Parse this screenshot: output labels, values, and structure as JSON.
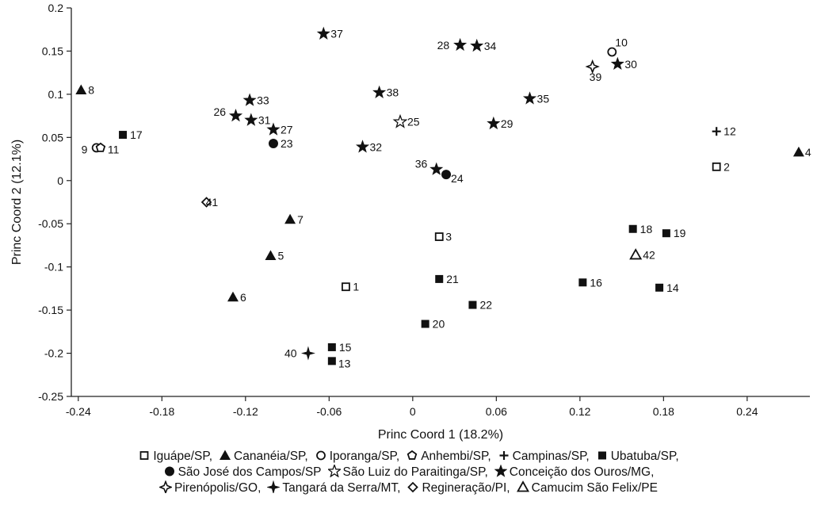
{
  "chart_data": {
    "type": "scatter",
    "xlabel": "Princ Coord 1 (18.2%)",
    "ylabel": "Princ Coord 2 (12.1%)",
    "xlim": [
      -0.245,
      0.285
    ],
    "ylim": [
      -0.25,
      0.2
    ],
    "x_ticks": [
      -0.24,
      -0.18,
      -0.12,
      -0.06,
      0,
      0.06,
      0.12,
      0.18,
      0.24
    ],
    "x_tick_labels": [
      "-0.24",
      "-0.18",
      "-0.12",
      "-0.06",
      "0",
      "0.06",
      "0.12",
      "0.18",
      "0.24"
    ],
    "y_ticks": [
      -0.25,
      -0.2,
      -0.15,
      -0.1,
      -0.05,
      0,
      0.05,
      0.1,
      0.15,
      0.2
    ],
    "y_tick_labels": [
      "-0.25",
      "-0.2",
      "-0.15",
      "-0.1",
      "-0.05",
      "0",
      "0.05",
      "0.1",
      "0.15",
      "0.2"
    ],
    "grid": false,
    "legend_position": "bottom",
    "series": [
      {
        "name": "Iguápe/SP,",
        "marker": "open-square",
        "points": [
          {
            "label": "1",
            "x": -0.048,
            "y": -0.123
          },
          {
            "label": "2",
            "x": 0.218,
            "y": 0.016
          },
          {
            "label": "3",
            "x": 0.019,
            "y": -0.065
          }
        ]
      },
      {
        "name": "Cananéia/SP,",
        "marker": "filled-triangle",
        "points": [
          {
            "label": "4",
            "x": 0.277,
            "y": 0.033
          },
          {
            "label": "5",
            "x": -0.102,
            "y": -0.087
          },
          {
            "label": "6",
            "x": -0.129,
            "y": -0.135
          },
          {
            "label": "7",
            "x": -0.088,
            "y": -0.045
          },
          {
            "label": "8",
            "x": -0.238,
            "y": 0.105
          }
        ]
      },
      {
        "name": "Iporanga/SP,",
        "marker": "open-circle",
        "points": [
          {
            "label": "9",
            "x": -0.227,
            "y": 0.038
          },
          {
            "label": "10",
            "x": 0.143,
            "y": 0.149
          }
        ]
      },
      {
        "name": "Anhembi/SP,",
        "marker": "open-pentagon",
        "points": [
          {
            "label": "11",
            "x": -0.224,
            "y": 0.038
          }
        ]
      },
      {
        "name": "Campinas/SP,",
        "marker": "plus",
        "points": [
          {
            "label": "12",
            "x": 0.218,
            "y": 0.057
          }
        ]
      },
      {
        "name": "Ubatuba/SP,",
        "marker": "filled-square",
        "points": [
          {
            "label": "13",
            "x": -0.058,
            "y": -0.209
          },
          {
            "label": "14",
            "x": 0.177,
            "y": -0.124
          },
          {
            "label": "15",
            "x": -0.058,
            "y": -0.193
          },
          {
            "label": "16",
            "x": 0.122,
            "y": -0.118
          },
          {
            "label": "17",
            "x": -0.208,
            "y": 0.053
          },
          {
            "label": "18",
            "x": 0.158,
            "y": -0.056
          },
          {
            "label": "19",
            "x": 0.182,
            "y": -0.061
          },
          {
            "label": "20",
            "x": 0.009,
            "y": -0.166
          },
          {
            "label": "21",
            "x": 0.019,
            "y": -0.114
          },
          {
            "label": "22",
            "x": 0.043,
            "y": -0.144
          }
        ]
      },
      {
        "name": "São José dos Campos/SP",
        "marker": "filled-circle",
        "points": [
          {
            "label": "23",
            "x": -0.1,
            "y": 0.043
          },
          {
            "label": "24",
            "x": 0.024,
            "y": 0.007
          }
        ]
      },
      {
        "name": "São Luiz do Paraitinga/SP,",
        "marker": "open-star",
        "points": [
          {
            "label": "25",
            "x": -0.009,
            "y": 0.068
          }
        ]
      },
      {
        "name": "Conceição dos Ouros/MG,",
        "marker": "filled-star",
        "points": [
          {
            "label": "26",
            "x": -0.127,
            "y": 0.075
          },
          {
            "label": "27",
            "x": -0.1,
            "y": 0.059
          },
          {
            "label": "28",
            "x": 0.034,
            "y": 0.157
          },
          {
            "label": "29",
            "x": 0.058,
            "y": 0.066
          },
          {
            "label": "30",
            "x": 0.147,
            "y": 0.135
          },
          {
            "label": "31",
            "x": -0.116,
            "y": 0.07
          },
          {
            "label": "32",
            "x": -0.036,
            "y": 0.039
          },
          {
            "label": "33",
            "x": -0.117,
            "y": 0.093
          },
          {
            "label": "34",
            "x": 0.046,
            "y": 0.156
          },
          {
            "label": "35",
            "x": 0.084,
            "y": 0.095
          },
          {
            "label": "36",
            "x": 0.017,
            "y": 0.013
          },
          {
            "label": "37",
            "x": -0.064,
            "y": 0.17
          },
          {
            "label": "38",
            "x": -0.024,
            "y": 0.102
          }
        ]
      },
      {
        "name": "Pirenópolis/GO,",
        "marker": "open-4star",
        "points": [
          {
            "label": "39",
            "x": 0.129,
            "y": 0.132
          }
        ]
      },
      {
        "name": "Tangará da Serra/MT,",
        "marker": "filled-4star",
        "points": [
          {
            "label": "40",
            "x": -0.075,
            "y": -0.2
          }
        ]
      },
      {
        "name": "Regineração/PI,",
        "marker": "open-diamond",
        "points": [
          {
            "label": "41",
            "x": -0.148,
            "y": -0.025
          }
        ]
      },
      {
        "name": "Camucim São Felix/PE",
        "marker": "open-triangle",
        "points": [
          {
            "label": "42",
            "x": 0.16,
            "y": -0.086
          }
        ]
      }
    ]
  }
}
